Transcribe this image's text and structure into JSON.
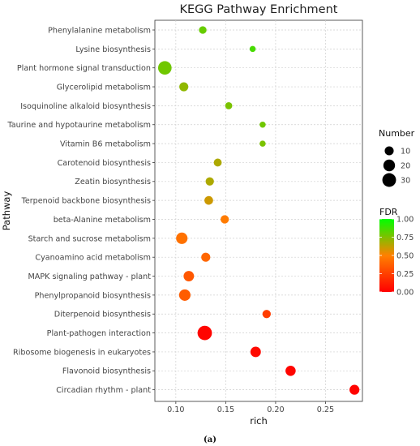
{
  "chart_data": {
    "type": "scatter",
    "title": "KEGG Pathway Enrichment",
    "xlabel": "rich",
    "ylabel": "Pathway",
    "xlim": [
      0.079,
      0.287
    ],
    "xticks": [
      0.1,
      0.15,
      0.2,
      0.25
    ],
    "xtick_labels": [
      "0.10",
      "0.15",
      "0.20",
      "0.25"
    ],
    "grid": true,
    "categories": [
      "Phenylalanine metabolism",
      "Lysine biosynthesis",
      "Plant hormone signal transduction",
      "Glycerolipid metabolism",
      "Isoquinoline alkaloid biosynthesis",
      "Taurine and hypotaurine metabolism",
      "Vitamin B6 metabolism",
      "Carotenoid biosynthesis",
      "Zeatin biosynthesis",
      "Terpenoid backbone biosynthesis",
      "beta-Alanine metabolism",
      "Starch and sucrose metabolism",
      "Cyanoamino acid metabolism",
      "MAPK signaling pathway - plant",
      "Phenylpropanoid biosynthesis",
      "Diterpenoid biosynthesis",
      "Plant-pathogen interaction",
      "Ribosome biogenesis in eukaryotes",
      "Flavonoid biosynthesis",
      "Circadian rhythm - plant"
    ],
    "points": [
      {
        "rich": 0.127,
        "number": 6,
        "fdr": 0.8
      },
      {
        "rich": 0.177,
        "number": 3,
        "fdr": 0.86
      },
      {
        "rich": 0.089,
        "number": 29,
        "fdr": 0.78
      },
      {
        "rich": 0.108,
        "number": 10,
        "fdr": 0.72
      },
      {
        "rich": 0.153,
        "number": 5,
        "fdr": 0.76
      },
      {
        "rich": 0.187,
        "number": 3,
        "fdr": 0.78
      },
      {
        "rich": 0.187,
        "number": 3,
        "fdr": 0.76
      },
      {
        "rich": 0.142,
        "number": 7,
        "fdr": 0.66
      },
      {
        "rich": 0.134,
        "number": 8,
        "fdr": 0.66
      },
      {
        "rich": 0.133,
        "number": 9,
        "fdr": 0.6
      },
      {
        "rich": 0.149,
        "number": 8,
        "fdr": 0.48
      },
      {
        "rich": 0.106,
        "number": 19,
        "fdr": 0.44
      },
      {
        "rich": 0.13,
        "number": 10,
        "fdr": 0.4
      },
      {
        "rich": 0.113,
        "number": 15,
        "fdr": 0.34
      },
      {
        "rich": 0.109,
        "number": 19,
        "fdr": 0.36
      },
      {
        "rich": 0.191,
        "number": 8,
        "fdr": 0.24
      },
      {
        "rich": 0.129,
        "number": 34,
        "fdr": 0.02
      },
      {
        "rich": 0.18,
        "number": 15,
        "fdr": 0.04
      },
      {
        "rich": 0.215,
        "number": 14,
        "fdr": 0.02
      },
      {
        "rich": 0.279,
        "number": 13,
        "fdr": 0.01
      }
    ],
    "size_legend": {
      "title": "Number",
      "values": [
        10,
        20,
        30
      ],
      "labels": [
        "10",
        "20",
        "30"
      ]
    },
    "color_legend": {
      "title": "FDR",
      "range": [
        0,
        1
      ],
      "ticks": [
        1.0,
        0.75,
        0.5,
        0.25,
        0.0
      ],
      "tick_labels": [
        "1.00",
        "0.75",
        "0.50",
        "0.25",
        "0.00"
      ],
      "low_color": "#ff0000",
      "high_color": "#00ff00",
      "placement": "right"
    },
    "caption": "(a)"
  }
}
